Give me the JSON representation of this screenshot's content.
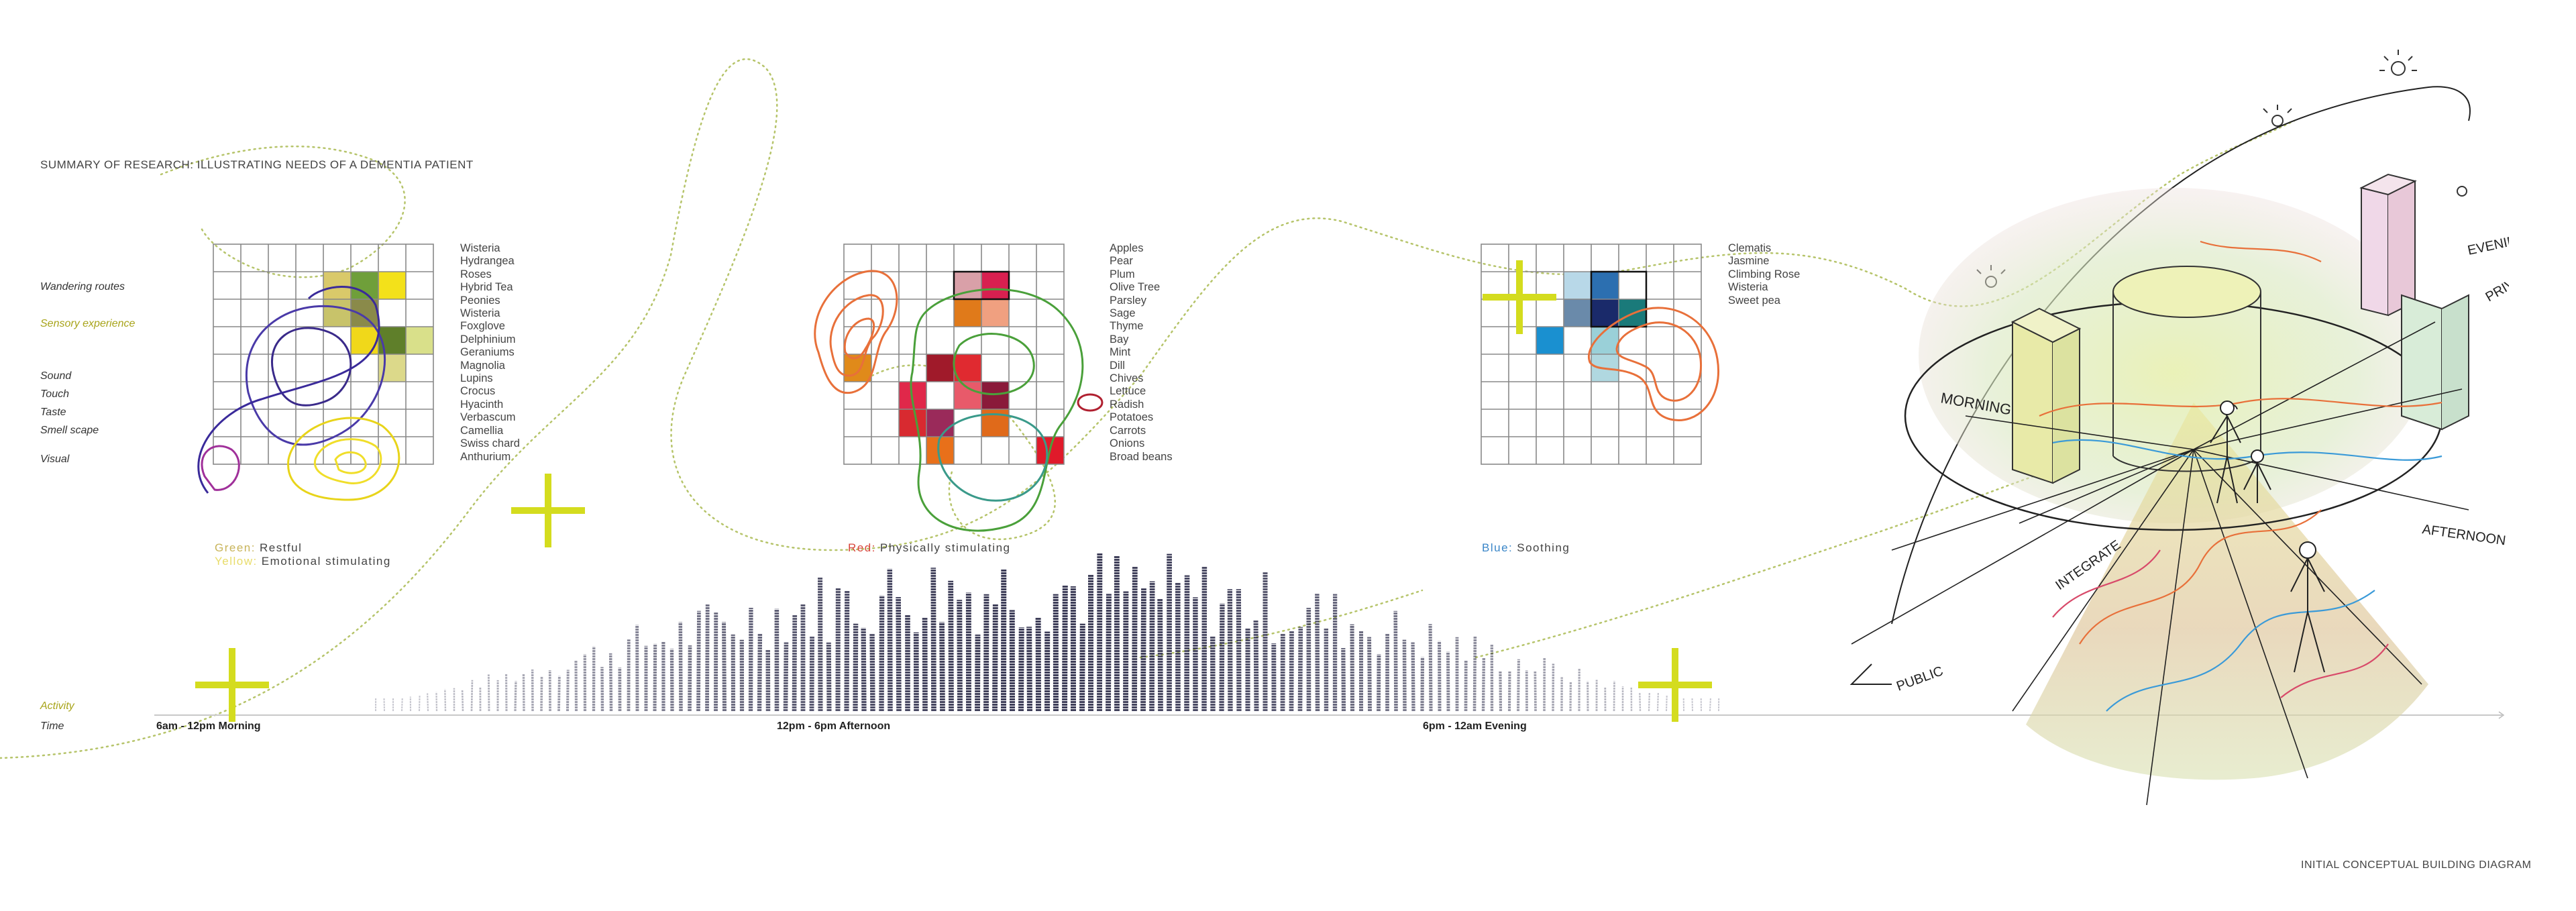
{
  "heading": "SUMMARY OF RESEARCH: ILLUSTRATING NEEDS OF A DEMENTIA PATIENT",
  "row_labels": {
    "wandering": "Wandering routes",
    "sensory": "Sensory experience",
    "sound": "Sound",
    "touch": "Touch",
    "taste": "Taste",
    "smell": "Smell scape",
    "visual": "Visual",
    "activity": "Activity",
    "time": "Time"
  },
  "gardens": [
    {
      "plants": [
        "Wisteria",
        "Hydrangea",
        "Roses",
        "Hybrid Tea",
        "Peonies",
        "Wisteria",
        "Foxglove",
        "Delphinium",
        "Geraniums",
        "Magnolia",
        "Lupins",
        "Crocus",
        "Hyacinth",
        "Verbascum",
        "Camellia",
        "Swiss chard",
        "Anthurium"
      ],
      "legend": [
        {
          "key": "Green:",
          "key_color": "#c8b45a",
          "text": "Restful"
        },
        {
          "key": "Yellow:",
          "key_color": "#e8dc6a",
          "text": "Emotional stimulating"
        }
      ]
    },
    {
      "plants": [
        "Apples",
        "Pear",
        "Plum",
        "Olive Tree",
        "Parsley",
        "Sage",
        "Thyme",
        "Bay",
        "Mint",
        "Dill",
        "Chives",
        "Lettuce",
        "Radish",
        "Potatoes",
        "Carrots",
        "Onions",
        "Broad beans"
      ],
      "legend": [
        {
          "key": "Red:",
          "key_color": "#d8453a",
          "text": "Physically stimulating"
        }
      ]
    },
    {
      "plants": [
        "Clematis",
        "Jasmine",
        "Climbing Rose",
        "Wisteria",
        "Sweet pea"
      ],
      "legend": [
        {
          "key": "Blue:",
          "key_color": "#3a86c8",
          "text": "Soothing"
        }
      ]
    }
  ],
  "time_periods": [
    "6am - 12pm Morning",
    "12pm - 6pm Afternoon",
    "6pm - 12am Evening"
  ],
  "sketch_labels": {
    "morning": "MORNING",
    "evening": "EVENING",
    "private": "PRIVATE",
    "afternoon": "AFTERNOON",
    "integrate": "INTEGRATE",
    "public": "PUBLIC"
  },
  "footer": "INITIAL CONCEPTUAL BUILDING DIAGRAM",
  "colors": {
    "accent_yellow": "#d4dc1e",
    "restful_green": "#5f7f2a",
    "stimulating_red": "#d8303a",
    "soothing_blue": "#2c6fb0",
    "route_dots": "#b6c46a"
  }
}
